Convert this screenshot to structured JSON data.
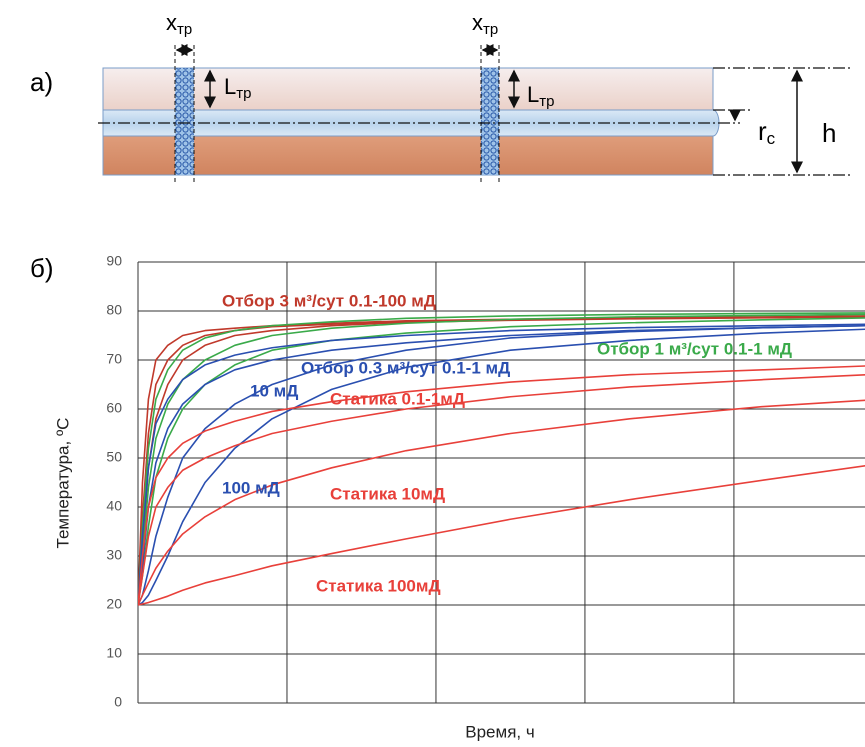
{
  "diagram": {
    "label": "а)",
    "fracture_width": {
      "base": "x",
      "sub": "тр"
    },
    "fracture_length": {
      "base": "L",
      "sub": "тр"
    },
    "well_radius": {
      "base": "r",
      "sub": "с"
    },
    "thickness": "h"
  },
  "chart_data": {
    "type": "line",
    "panel_label": "б)",
    "y_label": "Температура, ºC",
    "x_label": "Время, ч",
    "x": [
      0,
      0.03,
      0.07,
      0.12,
      0.2,
      0.3,
      0.45,
      0.65,
      0.9,
      1.3,
      1.8,
      2.5,
      3.3,
      4.2,
      4.9
    ],
    "xlim": [
      0,
      4.9
    ],
    "xgrid": [
      1,
      2,
      3,
      4
    ],
    "ylim": [
      0,
      90
    ],
    "yticks": [
      0,
      10,
      20,
      30,
      40,
      50,
      60,
      70,
      80,
      90
    ],
    "grid": true,
    "series": [
      {
        "color": "#c0392b",
        "values": [
          20,
          45,
          62,
          70,
          73,
          75,
          76,
          76.5,
          77,
          77.5,
          78,
          78.3,
          78.6,
          78.8,
          79
        ]
      },
      {
        "color": "#c0392b",
        "values": [
          20,
          38,
          55,
          65,
          70,
          73,
          75,
          76,
          76.8,
          77.3,
          77.8,
          78.2,
          78.5,
          78.7,
          78.9
        ]
      },
      {
        "color": "#c0392b",
        "values": [
          20,
          32,
          48,
          58,
          65,
          70,
          73,
          75,
          76,
          77,
          77.7,
          78.1,
          78.4,
          78.6,
          78.8
        ]
      },
      {
        "color": "#3aaa4a",
        "values": [
          20,
          36,
          52,
          62,
          68,
          72,
          74.5,
          76,
          77,
          77.8,
          78.5,
          79,
          79.3,
          79.5,
          79.6
        ]
      },
      {
        "color": "#3aaa4a",
        "values": [
          20,
          30,
          44,
          54,
          61,
          66,
          70,
          73,
          75,
          76.5,
          77.5,
          78.3,
          78.8,
          79.1,
          79.3
        ]
      },
      {
        "color": "#3aaa4a",
        "values": [
          20,
          26,
          36,
          46,
          54,
          60,
          65,
          69,
          72,
          74,
          75.5,
          76.8,
          77.6,
          78.2,
          78.6
        ]
      },
      {
        "color": "#2a4fb0",
        "values": [
          20,
          34,
          48,
          57,
          62,
          66,
          69,
          71,
          72.5,
          74,
          75,
          76,
          76.6,
          77,
          77.3
        ]
      },
      {
        "color": "#2a4fb0",
        "values": [
          20,
          28,
          40,
          49,
          56,
          61,
          65,
          68,
          70,
          72,
          73.5,
          75,
          76,
          76.6,
          77
        ]
      },
      {
        "color": "#2a4fb0",
        "values": [
          20,
          22,
          27,
          34,
          42,
          50,
          56,
          61,
          65,
          69,
          72,
          74.5,
          75.8,
          76.6,
          77
        ]
      },
      {
        "color": "#2a4fb0",
        "values": [
          20,
          20.5,
          22,
          25,
          30,
          37,
          45,
          52,
          58,
          64,
          68.5,
          72,
          74,
          75.5,
          76.3
        ]
      },
      {
        "color": "#e8403a",
        "values": [
          20,
          30,
          40,
          46,
          50,
          53,
          55.5,
          57.5,
          59.5,
          61.5,
          63.5,
          65.5,
          67,
          68,
          68.8
        ]
      },
      {
        "color": "#e8403a",
        "values": [
          20,
          26,
          34,
          40,
          44,
          47.5,
          50,
          52.5,
          55,
          57.5,
          60,
          62.5,
          64.5,
          66,
          67
        ]
      },
      {
        "color": "#e8403a",
        "values": [
          20,
          22,
          24.5,
          27.5,
          31,
          34.5,
          38,
          41.5,
          44.5,
          48,
          51.5,
          55,
          58,
          60.5,
          61.8
        ]
      },
      {
        "color": "#e8403a",
        "values": [
          20,
          20.2,
          20.5,
          21,
          21.8,
          23,
          24.5,
          26,
          28,
          30.5,
          33.5,
          37.5,
          41.5,
          45.5,
          48.5
        ]
      }
    ],
    "annotations": [
      {
        "text": "Отбор 3 м³/сут 0.1-100 мД",
        "color": "#c0392b"
      },
      {
        "text": "Отбор 1 м³/сут 0.1-1 мД",
        "color": "#3aaa4a"
      },
      {
        "text": "Отбор 0.3 м³/сут 0.1-1 мД",
        "color": "#2a4fb0"
      },
      {
        "text": "10 мД",
        "color": "#2a4fb0"
      },
      {
        "text": "Статика 0.1-1мД",
        "color": "#e8403a"
      },
      {
        "text": "100 мД",
        "color": "#2a4fb0"
      },
      {
        "text": "Статика 10мД",
        "color": "#e8403a"
      },
      {
        "text": "Статика 100мД",
        "color": "#e8403a"
      }
    ]
  }
}
